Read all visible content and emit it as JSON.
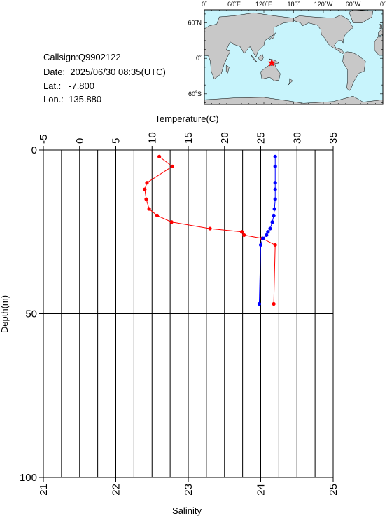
{
  "info": {
    "callsign": "Callsign:Q9902122",
    "date": "Date:  2025/06/30 08:35(UTC)",
    "lat": "Lat.:   -7.800",
    "lon": "Lon.:  135.880"
  },
  "map": {
    "top_labels": [
      "0˚",
      "60˚E",
      "120˚E",
      "180˚",
      "120˚W",
      "60˚W",
      "0˚"
    ],
    "left_labels": [
      "60˚N",
      "0˚",
      "60˚S"
    ],
    "ocean_color": "#c8f4fc",
    "land_color": "#c8c8c8",
    "marker_color": "#ff0000",
    "station": {
      "lon": 135.88,
      "lat": -7.8
    }
  },
  "chart_data": {
    "type": "line",
    "top_axis": {
      "label": "Temperature(C)",
      "range": [
        -5,
        35
      ],
      "ticks": [
        -5,
        0,
        5,
        10,
        15,
        20,
        25,
        30,
        35
      ]
    },
    "bottom_axis": {
      "label": "Salinity",
      "range": [
        21,
        25
      ],
      "ticks": [
        21,
        22,
        23,
        24,
        25
      ]
    },
    "y_axis": {
      "label": "Depth(m)",
      "range": [
        0,
        100
      ],
      "inverted": true,
      "ticks": [
        0,
        50,
        100
      ]
    },
    "grid": true,
    "series": [
      {
        "color": "#ff0000",
        "axis": "top",
        "points": [
          {
            "depth": 2,
            "value": 11.0
          },
          {
            "depth": 5,
            "value": 12.8
          },
          {
            "depth": 10,
            "value": 9.3
          },
          {
            "depth": 12,
            "value": 9.0
          },
          {
            "depth": 15,
            "value": 9.2
          },
          {
            "depth": 18,
            "value": 9.6
          },
          {
            "depth": 20,
            "value": 10.7
          },
          {
            "depth": 22,
            "value": 12.7
          },
          {
            "depth": 24,
            "value": 18.0
          },
          {
            "depth": 25,
            "value": 22.4
          },
          {
            "depth": 26,
            "value": 22.7
          },
          {
            "depth": 27,
            "value": 25.2
          },
          {
            "depth": 29,
            "value": 27.0
          },
          {
            "depth": 47,
            "value": 26.8
          }
        ]
      },
      {
        "color": "#0000ff",
        "axis": "bottom",
        "points": [
          {
            "depth": 2,
            "value": 24.2
          },
          {
            "depth": 5,
            "value": 24.2
          },
          {
            "depth": 10,
            "value": 24.2
          },
          {
            "depth": 12,
            "value": 24.2
          },
          {
            "depth": 15,
            "value": 24.2
          },
          {
            "depth": 18,
            "value": 24.19
          },
          {
            "depth": 20,
            "value": 24.18
          },
          {
            "depth": 22,
            "value": 24.16
          },
          {
            "depth": 24,
            "value": 24.13
          },
          {
            "depth": 25,
            "value": 24.1
          },
          {
            "depth": 26,
            "value": 24.08
          },
          {
            "depth": 27,
            "value": 24.03
          },
          {
            "depth": 29,
            "value": 24.0
          },
          {
            "depth": 47,
            "value": 23.98
          }
        ]
      }
    ]
  }
}
